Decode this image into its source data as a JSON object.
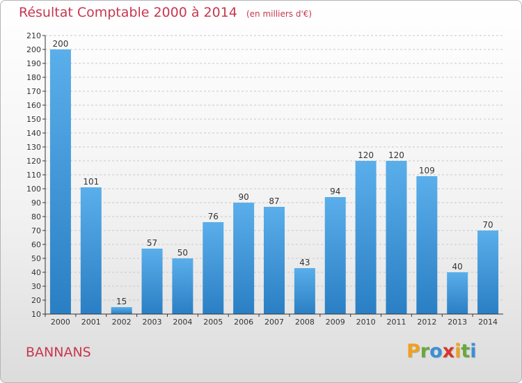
{
  "chart_data": {
    "type": "bar",
    "title": "Résultat Comptable 2000 à 2014",
    "subtitle": "(en milliers d'€)",
    "categories": [
      "2000",
      "2001",
      "2002",
      "2003",
      "2004",
      "2005",
      "2006",
      "2007",
      "2008",
      "2009",
      "2010",
      "2011",
      "2012",
      "2013",
      "2014"
    ],
    "values": [
      200,
      101,
      15,
      57,
      50,
      76,
      90,
      87,
      43,
      94,
      120,
      120,
      109,
      40,
      70
    ],
    "ylim": [
      10,
      210
    ],
    "yticks": [
      10,
      20,
      30,
      40,
      50,
      60,
      70,
      80,
      90,
      100,
      110,
      120,
      130,
      140,
      150,
      160,
      170,
      180,
      190,
      200,
      210
    ],
    "grid": true,
    "xlabel": "",
    "ylabel": "",
    "colors": {
      "bar_light": "#5aaeea",
      "bar_dark": "#2a7fc4",
      "grid": "#c8c8c8",
      "axis": "#333333",
      "text": "#333333",
      "title": "#c8364f"
    }
  },
  "commune": "BANNANS",
  "logo": {
    "letters": [
      "P",
      "r",
      "o",
      "x",
      "i",
      "t",
      "i"
    ],
    "colors": [
      "#f0a020",
      "#6aa83a",
      "#3b8fd6",
      "#d8342c",
      "#f0a020",
      "#6aa83a",
      "#3b8fd6"
    ]
  }
}
